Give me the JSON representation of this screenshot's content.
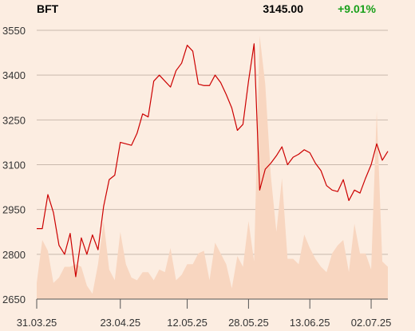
{
  "header": {
    "ticker": "BFT",
    "price": "3145.00",
    "change": "+9.01%",
    "change_color": "#1aa01a"
  },
  "chart_data": {
    "type": "line",
    "title": "BFT",
    "xlabel": "",
    "ylabel": "",
    "ylim": [
      2650,
      3550
    ],
    "grid": true,
    "colors": {
      "line": "#cc0000",
      "volume": "#f8d6c0",
      "grid": "#c9b9ad",
      "background": "#fcede1"
    },
    "x_tick_labels": [
      "31.03.25",
      "23.04.25",
      "12.05.25",
      "28.05.25",
      "13.06.25",
      "02.07.25"
    ],
    "x_tick_index": [
      0,
      15,
      27,
      38,
      49,
      60
    ],
    "y_ticks": [
      2650,
      2800,
      2950,
      3100,
      3250,
      3400,
      3550
    ],
    "series": [
      {
        "name": "Price",
        "type": "line",
        "values": [
          2886,
          2886,
          3000,
          2940,
          2830,
          2800,
          2870,
          2725,
          2855,
          2800,
          2865,
          2815,
          2960,
          3050,
          3065,
          3175,
          3170,
          3165,
          3205,
          3270,
          3260,
          3380,
          3400,
          3380,
          3360,
          3415,
          3440,
          3500,
          3480,
          3370,
          3365,
          3365,
          3400,
          3375,
          3335,
          3290,
          3215,
          3235,
          3380,
          3505,
          3015,
          3085,
          3105,
          3130,
          3160,
          3100,
          3125,
          3135,
          3150,
          3140,
          3105,
          3080,
          3030,
          3015,
          3010,
          3050,
          2980,
          3015,
          3005,
          3055,
          3100,
          3170,
          3115,
          3145
        ]
      },
      {
        "name": "Volume",
        "type": "area",
        "values": [
          0.06,
          0.22,
          0.18,
          0.06,
          0.08,
          0.12,
          0.12,
          0.13,
          0.12,
          0.05,
          0.02,
          0.13,
          0.29,
          0.11,
          0.07,
          0.25,
          0.13,
          0.08,
          0.07,
          0.1,
          0.1,
          0.07,
          0.11,
          0.1,
          0.19,
          0.07,
          0.09,
          0.13,
          0.13,
          0.17,
          0.18,
          0.07,
          0.21,
          0.17,
          0.13,
          0.04,
          0.16,
          0.12,
          0.29,
          0.14,
          0.98,
          0.8,
          0.46,
          0.25,
          0.45,
          0.15,
          0.15,
          0.13,
          0.24,
          0.19,
          0.15,
          0.12,
          0.1,
          0.17,
          0.2,
          0.22,
          0.1,
          0.28,
          0.17,
          0.17,
          0.11,
          0.7,
          0.14,
          0.12
        ]
      }
    ]
  }
}
